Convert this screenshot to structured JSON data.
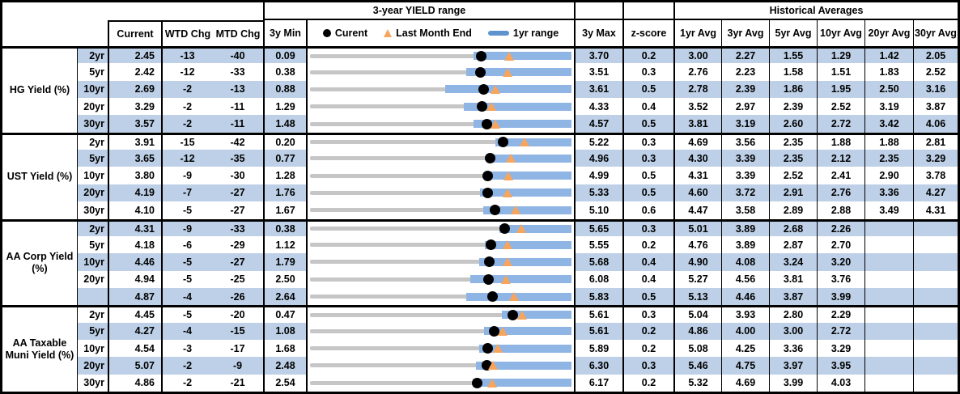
{
  "palette": {
    "row_shading_blue": "#bdd0e7",
    "range_bar_blue": "#8fb5e4",
    "legend_bar_blue": "#5e93ce",
    "marker_orange": "#f7a45c",
    "range_line_gray": "#c6c6c6",
    "border_black": "#000000"
  },
  "header": {
    "range_title": "3-year YIELD range",
    "hist_title": "Historical Averages",
    "current": "Current",
    "wtd": "WTD Chg",
    "mtd": "MTD Chg",
    "min3": "3y Min",
    "max3": "3y Max",
    "zscore": "z-score",
    "avgs": [
      "1yr Avg",
      "3yr Avg",
      "5yr Avg",
      "10yr Avg",
      "20yr Avg",
      "30yr Avg"
    ],
    "legend": {
      "current": "Curent",
      "last_month": "Last Month End",
      "range": "1yr range"
    }
  },
  "chart_data": {
    "type": "table",
    "columns": [
      "Current",
      "WTD Chg",
      "MTD Chg",
      "3y Min",
      "3-year YIELD range",
      "3y Max",
      "z-score",
      "1yr Avg",
      "3yr Avg",
      "5yr Avg",
      "10yr Avg",
      "20yr Avg",
      "30yr Avg"
    ],
    "range_chart_note": "Each row: gray line spans 3y Min to 3y Max; blue bar is 1yr range (estimated endpoints); black dot = Current; orange triangle = Last Month End (estimated)",
    "groups": [
      {
        "label": "HG Yield (%)",
        "rows": [
          {
            "maturity": "2yr",
            "current": "2.45",
            "wtd_chg": "-13",
            "mtd_chg": "-40",
            "min_3y": "0.09",
            "max_3y": "3.70",
            "z_score": "0.2",
            "avgs": [
              "3.00",
              "2.27",
              "1.55",
              "1.29",
              "1.42",
              "2.05"
            ],
            "range_1yr": [
              2.35,
              3.7
            ],
            "last_month_end": 2.85
          },
          {
            "maturity": "5yr",
            "current": "2.42",
            "wtd_chg": "-12",
            "mtd_chg": "-33",
            "min_3y": "0.38",
            "max_3y": "3.51",
            "z_score": "0.3",
            "avgs": [
              "2.76",
              "2.23",
              "1.58",
              "1.51",
              "1.83",
              "2.52"
            ],
            "range_1yr": [
              2.25,
              3.51
            ],
            "last_month_end": 2.75
          },
          {
            "maturity": "10yr",
            "current": "2.69",
            "wtd_chg": "-2",
            "mtd_chg": "-13",
            "min_3y": "0.88",
            "max_3y": "3.61",
            "z_score": "0.5",
            "avgs": [
              "2.78",
              "2.39",
              "1.86",
              "1.95",
              "2.50",
              "3.16"
            ],
            "range_1yr": [
              2.29,
              3.61
            ],
            "last_month_end": 2.82
          },
          {
            "maturity": "20yr",
            "current": "3.29",
            "wtd_chg": "-2",
            "mtd_chg": "-11",
            "min_3y": "1.29",
            "max_3y": "4.33",
            "z_score": "0.4",
            "avgs": [
              "3.52",
              "2.97",
              "2.39",
              "2.52",
              "3.19",
              "3.87"
            ],
            "range_1yr": [
              3.08,
              4.33
            ],
            "last_month_end": 3.4
          },
          {
            "maturity": "30yr",
            "current": "3.57",
            "wtd_chg": "-2",
            "mtd_chg": "-11",
            "min_3y": "1.48",
            "max_3y": "4.57",
            "z_score": "0.5",
            "avgs": [
              "3.81",
              "3.19",
              "2.60",
              "2.72",
              "3.42",
              "4.06"
            ],
            "range_1yr": [
              3.41,
              4.57
            ],
            "last_month_end": 3.68
          }
        ]
      },
      {
        "label": "UST Yield (%)",
        "rows": [
          {
            "maturity": "2yr",
            "current": "3.91",
            "wtd_chg": "-15",
            "mtd_chg": "-42",
            "min_3y": "0.20",
            "max_3y": "5.22",
            "z_score": "0.3",
            "avgs": [
              "4.69",
              "3.56",
              "2.35",
              "1.88",
              "1.88",
              "2.81"
            ],
            "range_1yr": [
              3.76,
              5.22
            ],
            "last_month_end": 4.33
          },
          {
            "maturity": "5yr",
            "current": "3.65",
            "wtd_chg": "-12",
            "mtd_chg": "-35",
            "min_3y": "0.77",
            "max_3y": "4.96",
            "z_score": "0.3",
            "avgs": [
              "4.30",
              "3.39",
              "2.35",
              "2.12",
              "2.35",
              "3.29"
            ],
            "range_1yr": [
              3.62,
              4.96
            ],
            "last_month_end": 4.0
          },
          {
            "maturity": "10yr",
            "current": "3.80",
            "wtd_chg": "-9",
            "mtd_chg": "-30",
            "min_3y": "1.28",
            "max_3y": "4.99",
            "z_score": "0.5",
            "avgs": [
              "4.31",
              "3.39",
              "2.52",
              "2.41",
              "2.90",
              "3.78"
            ],
            "range_1yr": [
              3.76,
              4.99
            ],
            "last_month_end": 4.1
          },
          {
            "maturity": "20yr",
            "current": "4.19",
            "wtd_chg": "-7",
            "mtd_chg": "-27",
            "min_3y": "1.76",
            "max_3y": "5.33",
            "z_score": "0.5",
            "avgs": [
              "4.60",
              "3.72",
              "2.91",
              "2.76",
              "3.36",
              "4.27"
            ],
            "range_1yr": [
              4.08,
              5.33
            ],
            "last_month_end": 4.46
          },
          {
            "maturity": "30yr",
            "current": "4.10",
            "wtd_chg": "-5",
            "mtd_chg": "-27",
            "min_3y": "1.67",
            "max_3y": "5.10",
            "z_score": "0.6",
            "avgs": [
              "4.47",
              "3.58",
              "2.89",
              "2.88",
              "3.49",
              "4.31"
            ],
            "range_1yr": [
              3.94,
              5.1
            ],
            "last_month_end": 4.37
          }
        ]
      },
      {
        "label": "AA Corp Yield (%)",
        "rows": [
          {
            "maturity": "2yr",
            "current": "4.31",
            "wtd_chg": "-9",
            "mtd_chg": "-33",
            "min_3y": "0.38",
            "max_3y": "5.65",
            "z_score": "0.3",
            "avgs": [
              "5.01",
              "3.89",
              "2.68",
              "2.26",
              "",
              ""
            ],
            "range_1yr": [
              4.2,
              5.65
            ],
            "last_month_end": 4.64
          },
          {
            "maturity": "5yr",
            "current": "4.18",
            "wtd_chg": "-6",
            "mtd_chg": "-29",
            "min_3y": "1.12",
            "max_3y": "5.55",
            "z_score": "0.2",
            "avgs": [
              "4.76",
              "3.89",
              "2.87",
              "2.70",
              "",
              ""
            ],
            "range_1yr": [
              4.08,
              5.55
            ],
            "last_month_end": 4.47
          },
          {
            "maturity": "10yr",
            "current": "4.46",
            "wtd_chg": "-5",
            "mtd_chg": "-27",
            "min_3y": "1.79",
            "max_3y": "5.68",
            "z_score": "0.4",
            "avgs": [
              "4.90",
              "4.08",
              "3.24",
              "3.20",
              "",
              ""
            ],
            "range_1yr": [
              4.31,
              5.68
            ],
            "last_month_end": 4.73
          },
          {
            "maturity": "20yr",
            "current": "4.94",
            "wtd_chg": "-5",
            "mtd_chg": "-25",
            "min_3y": "2.50",
            "max_3y": "6.08",
            "z_score": "0.4",
            "avgs": [
              "5.27",
              "4.56",
              "3.81",
              "3.76",
              "",
              ""
            ],
            "range_1yr": [
              4.69,
              6.08
            ],
            "last_month_end": 5.19
          },
          {
            "maturity": "",
            "current": "4.87",
            "wtd_chg": "-4",
            "mtd_chg": "-26",
            "min_3y": "2.64",
            "max_3y": "5.83",
            "z_score": "0.5",
            "avgs": [
              "5.13",
              "4.46",
              "3.87",
              "3.99",
              "",
              ""
            ],
            "range_1yr": [
              4.55,
              5.83
            ],
            "last_month_end": 5.13
          }
        ]
      },
      {
        "label": "AA Taxable Muni Yield (%)",
        "rows": [
          {
            "maturity": "2yr",
            "current": "4.45",
            "wtd_chg": "-5",
            "mtd_chg": "-20",
            "min_3y": "0.47",
            "max_3y": "5.61",
            "z_score": "0.3",
            "avgs": [
              "5.04",
              "3.93",
              "2.80",
              "2.29",
              "",
              ""
            ],
            "range_1yr": [
              4.24,
              5.61
            ],
            "last_month_end": 4.65
          },
          {
            "maturity": "5yr",
            "current": "4.27",
            "wtd_chg": "-4",
            "mtd_chg": "-15",
            "min_3y": "1.08",
            "max_3y": "5.61",
            "z_score": "0.2",
            "avgs": [
              "4.86",
              "4.00",
              "3.00",
              "2.72",
              "",
              ""
            ],
            "range_1yr": [
              4.1,
              5.61
            ],
            "last_month_end": 4.42
          },
          {
            "maturity": "10yr",
            "current": "4.54",
            "wtd_chg": "-3",
            "mtd_chg": "-17",
            "min_3y": "1.68",
            "max_3y": "5.89",
            "z_score": "0.2",
            "avgs": [
              "5.08",
              "4.25",
              "3.36",
              "3.29",
              "",
              ""
            ],
            "range_1yr": [
              4.4,
              5.89
            ],
            "last_month_end": 4.71
          },
          {
            "maturity": "20yr",
            "current": "5.07",
            "wtd_chg": "-2",
            "mtd_chg": "-9",
            "min_3y": "2.48",
            "max_3y": "6.30",
            "z_score": "0.3",
            "avgs": [
              "5.46",
              "4.75",
              "3.97",
              "3.95",
              "",
              ""
            ],
            "range_1yr": [
              4.9,
              6.3
            ],
            "last_month_end": 5.16
          },
          {
            "maturity": "30yr",
            "current": "4.86",
            "wtd_chg": "-2",
            "mtd_chg": "-21",
            "min_3y": "2.54",
            "max_3y": "6.17",
            "z_score": "0.2",
            "avgs": [
              "5.32",
              "4.69",
              "3.99",
              "4.03",
              "",
              ""
            ],
            "range_1yr": [
              4.8,
              6.17
            ],
            "last_month_end": 5.07
          }
        ]
      }
    ]
  }
}
